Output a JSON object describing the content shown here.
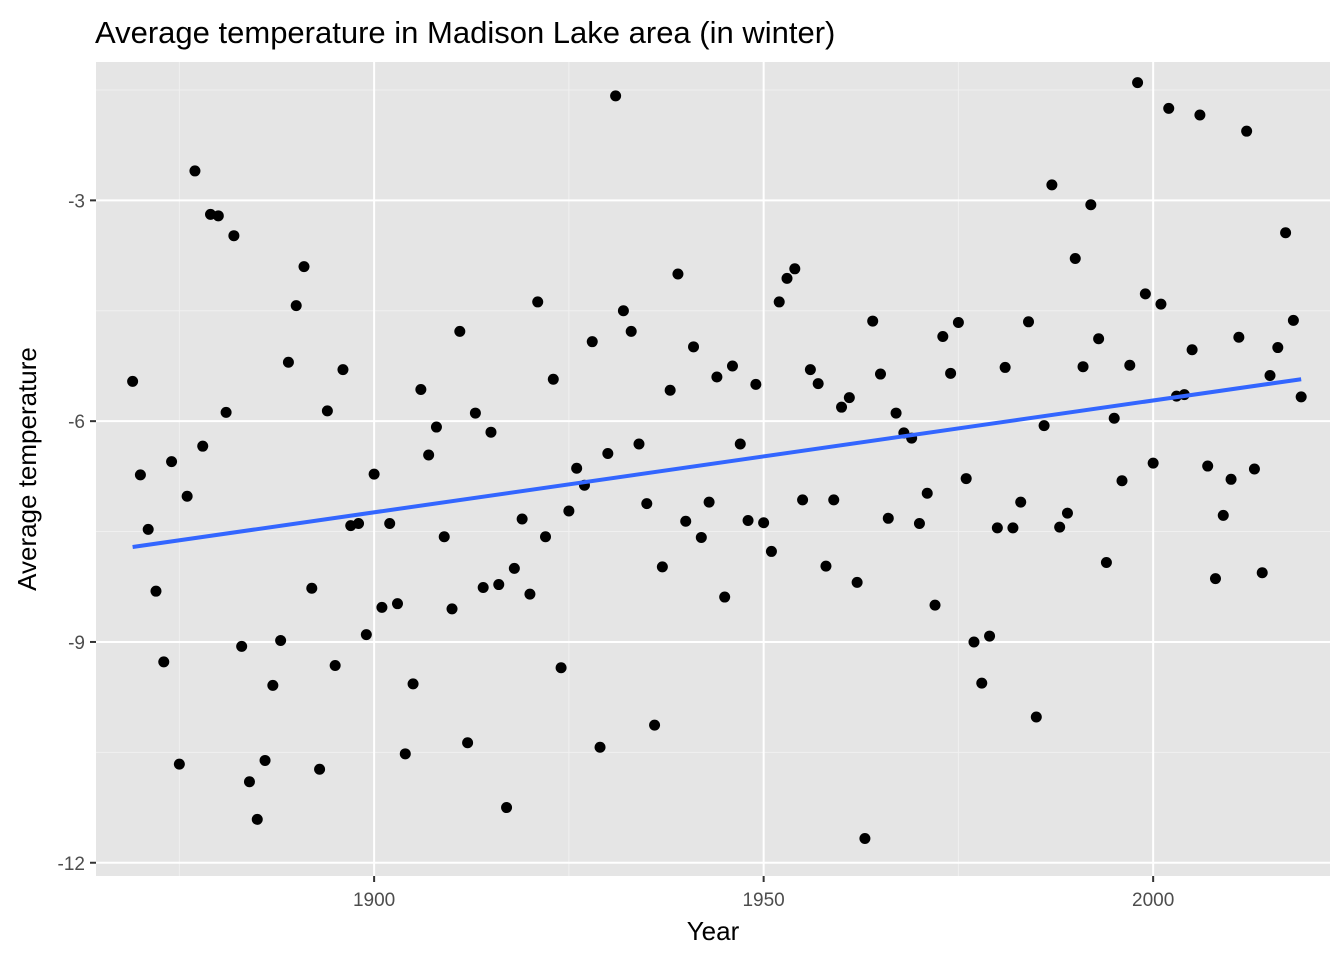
{
  "colors": {
    "panel_background": "#e5e5e5",
    "grid_major": "#ffffff",
    "grid_minor": "#f0f0f0",
    "points": "#000000",
    "trend_line": "#3366ff",
    "tick_text": "#4d4d4d"
  },
  "chart_data": {
    "type": "scatter",
    "title": "Average temperature in Madison Lake area (in winter)",
    "xlabel": "Year",
    "ylabel": "Average temperature",
    "xlim": [
      1864.3,
      2022.7
    ],
    "ylim": [
      -12.18,
      -1.12
    ],
    "x_ticks": [
      {
        "value": 1900,
        "label": "1900"
      },
      {
        "value": 1950,
        "label": "1950"
      },
      {
        "value": 2000,
        "label": "2000"
      }
    ],
    "y_ticks": [
      {
        "value": -3,
        "label": "-3"
      },
      {
        "value": -6,
        "label": "-6"
      },
      {
        "value": -9,
        "label": "-9"
      },
      {
        "value": -12,
        "label": "-12"
      }
    ],
    "grid": true,
    "legend": "none",
    "series": [
      {
        "x": [
          1869,
          1870,
          1871,
          1872,
          1873,
          1874,
          1875,
          1876,
          1877,
          1878,
          1879,
          1880,
          1881,
          1882,
          1883,
          1884,
          1885,
          1886,
          1887,
          1888,
          1889,
          1890,
          1891,
          1892,
          1893,
          1894,
          1895,
          1896,
          1897,
          1898,
          1899,
          1900,
          1901,
          1902,
          1903,
          1904,
          1905,
          1906,
          1907,
          1908,
          1909,
          1910,
          1911,
          1912,
          1913,
          1914,
          1915,
          1916,
          1917,
          1918,
          1919,
          1920,
          1921,
          1922,
          1923,
          1924,
          1925,
          1926,
          1927,
          1928,
          1929,
          1930,
          1931,
          1932,
          1933,
          1934,
          1935,
          1936,
          1937,
          1938,
          1939,
          1940,
          1941,
          1942,
          1943,
          1944,
          1945,
          1946,
          1947,
          1948,
          1949,
          1950,
          1951,
          1952,
          1953,
          1954,
          1955,
          1956,
          1957,
          1958,
          1959,
          1960,
          1961,
          1962,
          1963,
          1964,
          1965,
          1966,
          1967,
          1968,
          1969,
          1970,
          1971,
          1972,
          1973,
          1974,
          1975,
          1976,
          1977,
          1978,
          1979,
          1980,
          1981,
          1982,
          1983,
          1984,
          1985,
          1986,
          1987,
          1988,
          1989,
          1990,
          1991,
          1992,
          1993,
          1994,
          1995,
          1996,
          1997,
          1998,
          1999,
          2000,
          2001,
          2002,
          2003,
          2004,
          2005,
          2006,
          2007,
          2008,
          2009,
          2010,
          2011,
          2012,
          2013,
          2014,
          2015,
          2016,
          2017,
          2018,
          2019
        ],
        "y": [
          -5.46,
          -6.73,
          -7.47,
          -8.31,
          -9.27,
          -6.55,
          -10.66,
          -7.02,
          -2.6,
          -6.34,
          -3.19,
          -3.21,
          -5.88,
          -3.48,
          -9.06,
          -10.9,
          -11.41,
          -10.61,
          -9.59,
          -8.98,
          -5.2,
          -4.43,
          -3.9,
          -8.27,
          -10.73,
          -5.86,
          -9.32,
          -5.3,
          -7.42,
          -7.39,
          -8.9,
          -6.72,
          -8.53,
          -7.39,
          -8.48,
          -10.52,
          -9.57,
          -5.57,
          -6.46,
          -6.08,
          -7.57,
          -8.55,
          -4.78,
          -10.37,
          -5.89,
          -8.26,
          -6.15,
          -8.22,
          -11.25,
          -8.0,
          -7.33,
          -8.35,
          -4.38,
          -7.57,
          -5.43,
          -9.35,
          -7.22,
          -6.64,
          -6.87,
          -4.92,
          -10.43,
          -6.44,
          -1.58,
          -4.5,
          -4.78,
          -6.31,
          -7.12,
          -10.13,
          -7.98,
          -5.58,
          -4.0,
          -7.36,
          -4.99,
          -7.58,
          -7.1,
          -5.4,
          -8.39,
          -5.25,
          -6.31,
          -7.35,
          -5.5,
          -7.38,
          -7.77,
          -4.38,
          -4.06,
          -3.93,
          -7.07,
          -5.3,
          -5.49,
          -7.97,
          -7.07,
          -5.81,
          -5.68,
          -8.19,
          -11.67,
          -4.64,
          -5.36,
          -7.32,
          -5.89,
          -6.16,
          -6.23,
          -7.39,
          -6.98,
          -8.5,
          -4.85,
          -5.35,
          -4.66,
          -6.78,
          -9.0,
          -9.56,
          -8.92,
          -7.45,
          -5.27,
          -7.45,
          -7.1,
          -4.65,
          -10.02,
          -6.06,
          -2.79,
          -7.44,
          -7.25,
          -3.79,
          -5.26,
          -3.06,
          -4.88,
          -7.92,
          -5.96,
          -6.81,
          -5.24,
          -1.4,
          -4.27,
          -6.57,
          -4.41,
          -1.75,
          -5.66,
          -5.64,
          -5.03,
          -1.84,
          -6.61,
          -8.14,
          -7.28,
          -6.79,
          -4.86,
          -2.06,
          -6.65,
          -8.06,
          -5.38,
          -5.0,
          -3.44,
          -4.63,
          -5.67
        ]
      }
    ],
    "trend_line": {
      "method": "linear fit",
      "x": [
        1869,
        2019
      ],
      "y": [
        -7.71,
        -5.43
      ]
    }
  }
}
